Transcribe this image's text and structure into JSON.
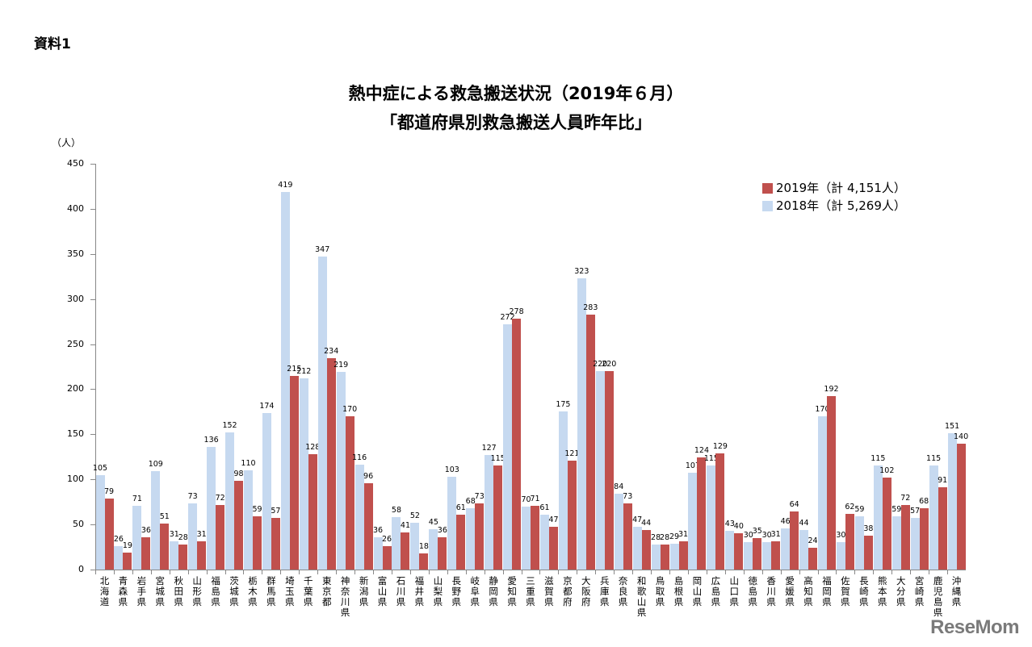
{
  "header": {
    "doc_label": "資料1",
    "title_line1": "熱中症による救急搬送状況（2019年６月）",
    "title_line2": "「都道府県別救急搬送人員昨年比」",
    "unit": "（人）"
  },
  "legend": {
    "items": [
      {
        "label": "2019年（計 4,151人）",
        "color": "#c0504d"
      },
      {
        "label": "2018年（計 5,269人）",
        "color": "#c6d9f0"
      }
    ]
  },
  "watermark": "ReseMom",
  "chart_data": {
    "type": "bar",
    "title": "熱中症による救急搬送状況（2019年６月） 「都道府県別救急搬送人員昨年比」",
    "xlabel": "",
    "ylabel": "（人）",
    "ylim": [
      0,
      450
    ],
    "yticks": [
      0,
      50,
      100,
      150,
      200,
      250,
      300,
      350,
      400,
      450
    ],
    "grid": false,
    "legend_position": "upper right",
    "categories": [
      "北海道",
      "青森県",
      "岩手県",
      "宮城県",
      "秋田県",
      "山形県",
      "福島県",
      "茨城県",
      "栃木県",
      "群馬県",
      "埼玉県",
      "千葉県",
      "東京都",
      "神奈川県",
      "新潟県",
      "富山県",
      "石川県",
      "福井県",
      "山梨県",
      "長野県",
      "岐阜県",
      "静岡県",
      "愛知県",
      "三重県",
      "滋賀県",
      "京都府",
      "大阪府",
      "兵庫県",
      "奈良県",
      "和歌山県",
      "鳥取県",
      "島根県",
      "岡山県",
      "広島県",
      "山口県",
      "徳島県",
      "香川県",
      "愛媛県",
      "高知県",
      "福岡県",
      "佐賀県",
      "長崎県",
      "熊本県",
      "大分県",
      "宮崎県",
      "鹿児島県",
      "沖縄県"
    ],
    "series": [
      {
        "name": "2018年（計 5,269人）",
        "color": "#c6d9f0",
        "values": [
          105,
          26,
          71,
          109,
          31,
          73,
          136,
          152,
          110,
          174,
          419,
          212,
          347,
          219,
          116,
          36,
          58,
          52,
          45,
          103,
          68,
          127,
          272,
          70,
          61,
          175,
          323,
          220,
          84,
          47,
          28,
          29,
          107,
          115,
          43,
          30,
          30,
          46,
          44,
          170,
          30,
          59,
          115,
          59,
          57,
          115,
          151
        ]
      },
      {
        "name": "2019年（計 4,151人）",
        "color": "#c0504d",
        "values": [
          79,
          19,
          36,
          51,
          28,
          31,
          72,
          98,
          59,
          57,
          215,
          128,
          234,
          170,
          96,
          26,
          41,
          18,
          36,
          61,
          73,
          115,
          278,
          71,
          47,
          121,
          283,
          220,
          73,
          44,
          28,
          31,
          124,
          129,
          40,
          35,
          31,
          64,
          24,
          192,
          62,
          38,
          102,
          72,
          68,
          91,
          140
        ]
      }
    ]
  }
}
